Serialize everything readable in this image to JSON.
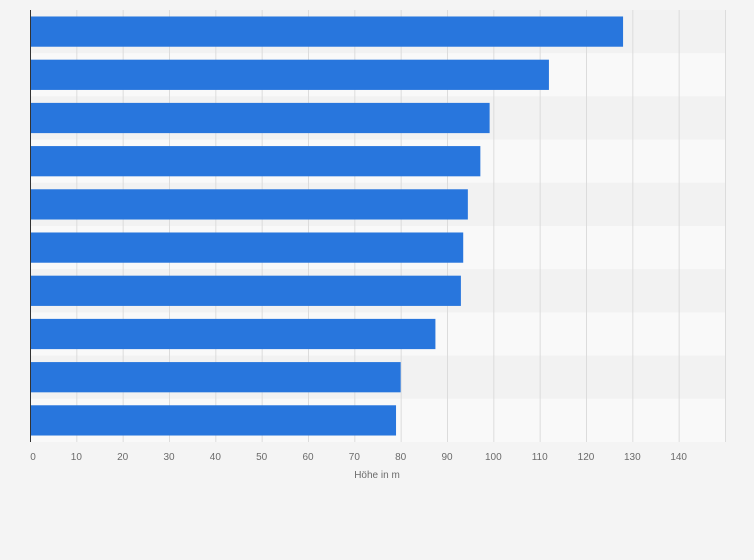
{
  "chart_data": {
    "type": "bar",
    "orientation": "horizontal",
    "title": "",
    "xlabel": "Höhe in m",
    "ylabel": "",
    "xlim": [
      0,
      150
    ],
    "xticks": [
      0,
      10,
      20,
      30,
      40,
      50,
      60,
      70,
      80,
      90,
      100,
      110,
      120,
      130,
      140
    ],
    "grid": true,
    "categories": [
      "",
      "",
      "",
      "",
      "",
      "",
      "",
      "",
      "",
      ""
    ],
    "values": [
      128,
      112,
      99.2,
      97.2,
      94.5,
      93.5,
      93,
      87.5,
      80,
      79
    ],
    "colors": {
      "bar": "#2876dd",
      "band_light": "#f9f9f9",
      "band_dark": "#f2f2f2",
      "grid": "#dcdcdc",
      "axis": "#333333",
      "text": "#6b6b6b"
    }
  }
}
